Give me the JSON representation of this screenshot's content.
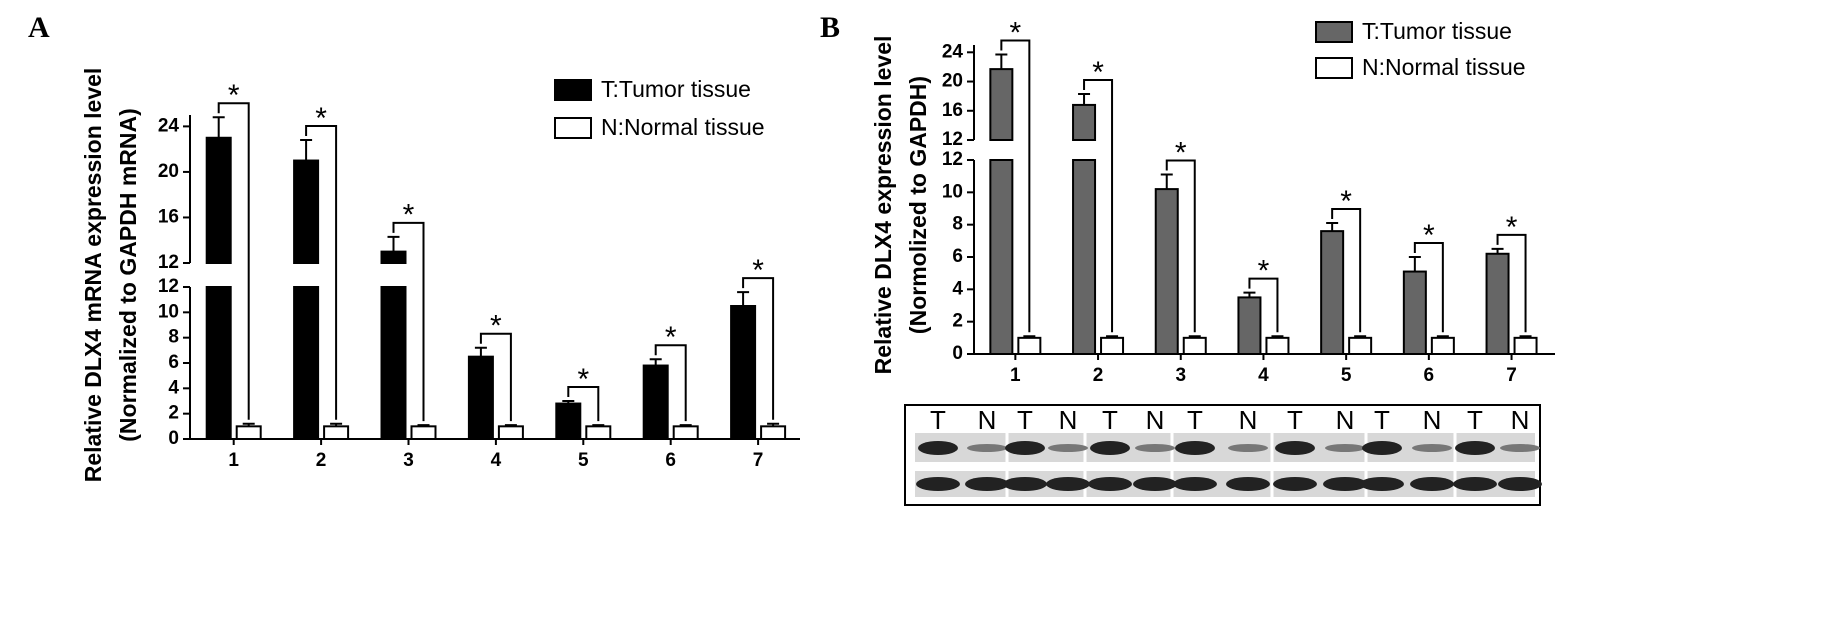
{
  "chart_data": [
    {
      "type": "broken-bar",
      "panel": "A",
      "ylabel": [
        "Relative DLX4 mRNA expression level",
        "(Normalized to GAPDH mRNA)"
      ],
      "categories": [
        "1",
        "2",
        "3",
        "4",
        "5",
        "6",
        "7"
      ],
      "y_segments": [
        {
          "ylim": [
            0,
            12
          ],
          "yticks": [
            0,
            2,
            4,
            6,
            8,
            10,
            12
          ]
        },
        {
          "ylim": [
            12,
            25
          ],
          "yticks": [
            12,
            16,
            20,
            24
          ]
        }
      ],
      "series": [
        {
          "name": "T:Tumor tissue",
          "color": "#000000",
          "values": [
            23,
            21,
            13,
            6.5,
            2.8,
            5.8,
            10.5
          ],
          "errors": [
            1.8,
            1.8,
            1.3,
            0.7,
            0.2,
            0.5,
            1.1
          ]
        },
        {
          "name": "N:Normal tissue",
          "color": "#ffffff",
          "values": [
            1,
            1,
            1,
            1,
            1,
            1,
            1
          ],
          "errors": [
            0.2,
            0.2,
            0.1,
            0.1,
            0.1,
            0.1,
            0.2
          ]
        }
      ],
      "significance": [
        "*",
        "*",
        "*",
        "*",
        "*",
        "*",
        "*"
      ]
    },
    {
      "type": "broken-bar",
      "panel": "B",
      "ylabel": [
        "Relative DLX4 expression level",
        "(Normolized to GAPDH)"
      ],
      "categories": [
        "1",
        "2",
        "3",
        "4",
        "5",
        "6",
        "7"
      ],
      "y_segments": [
        {
          "ylim": [
            0,
            12
          ],
          "yticks": [
            0,
            2,
            4,
            6,
            8,
            10,
            12
          ]
        },
        {
          "ylim": [
            12,
            25
          ],
          "yticks": [
            12,
            16,
            20,
            24
          ]
        }
      ],
      "series": [
        {
          "name": "T:Tumor tissue",
          "color": "#666666",
          "values": [
            21.7,
            16.8,
            10.2,
            3.5,
            7.6,
            5.1,
            6.2
          ],
          "errors": [
            2.0,
            1.5,
            0.9,
            0.3,
            0.5,
            0.9,
            0.3
          ]
        },
        {
          "name": "N:Normal tissue",
          "color": "#ffffff",
          "values": [
            1,
            1,
            1,
            1,
            1,
            1,
            1
          ],
          "errors": [
            0.1,
            0.1,
            0.1,
            0.1,
            0.1,
            0.1,
            0.1
          ]
        }
      ],
      "significance": [
        "*",
        "*",
        "*",
        "*",
        "*",
        "*",
        "*"
      ],
      "blot_lanes": [
        "T",
        "N",
        "T",
        "N",
        "T",
        "N",
        "T",
        "N",
        "T",
        "N",
        "T",
        "N",
        "T",
        "N"
      ]
    }
  ]
}
